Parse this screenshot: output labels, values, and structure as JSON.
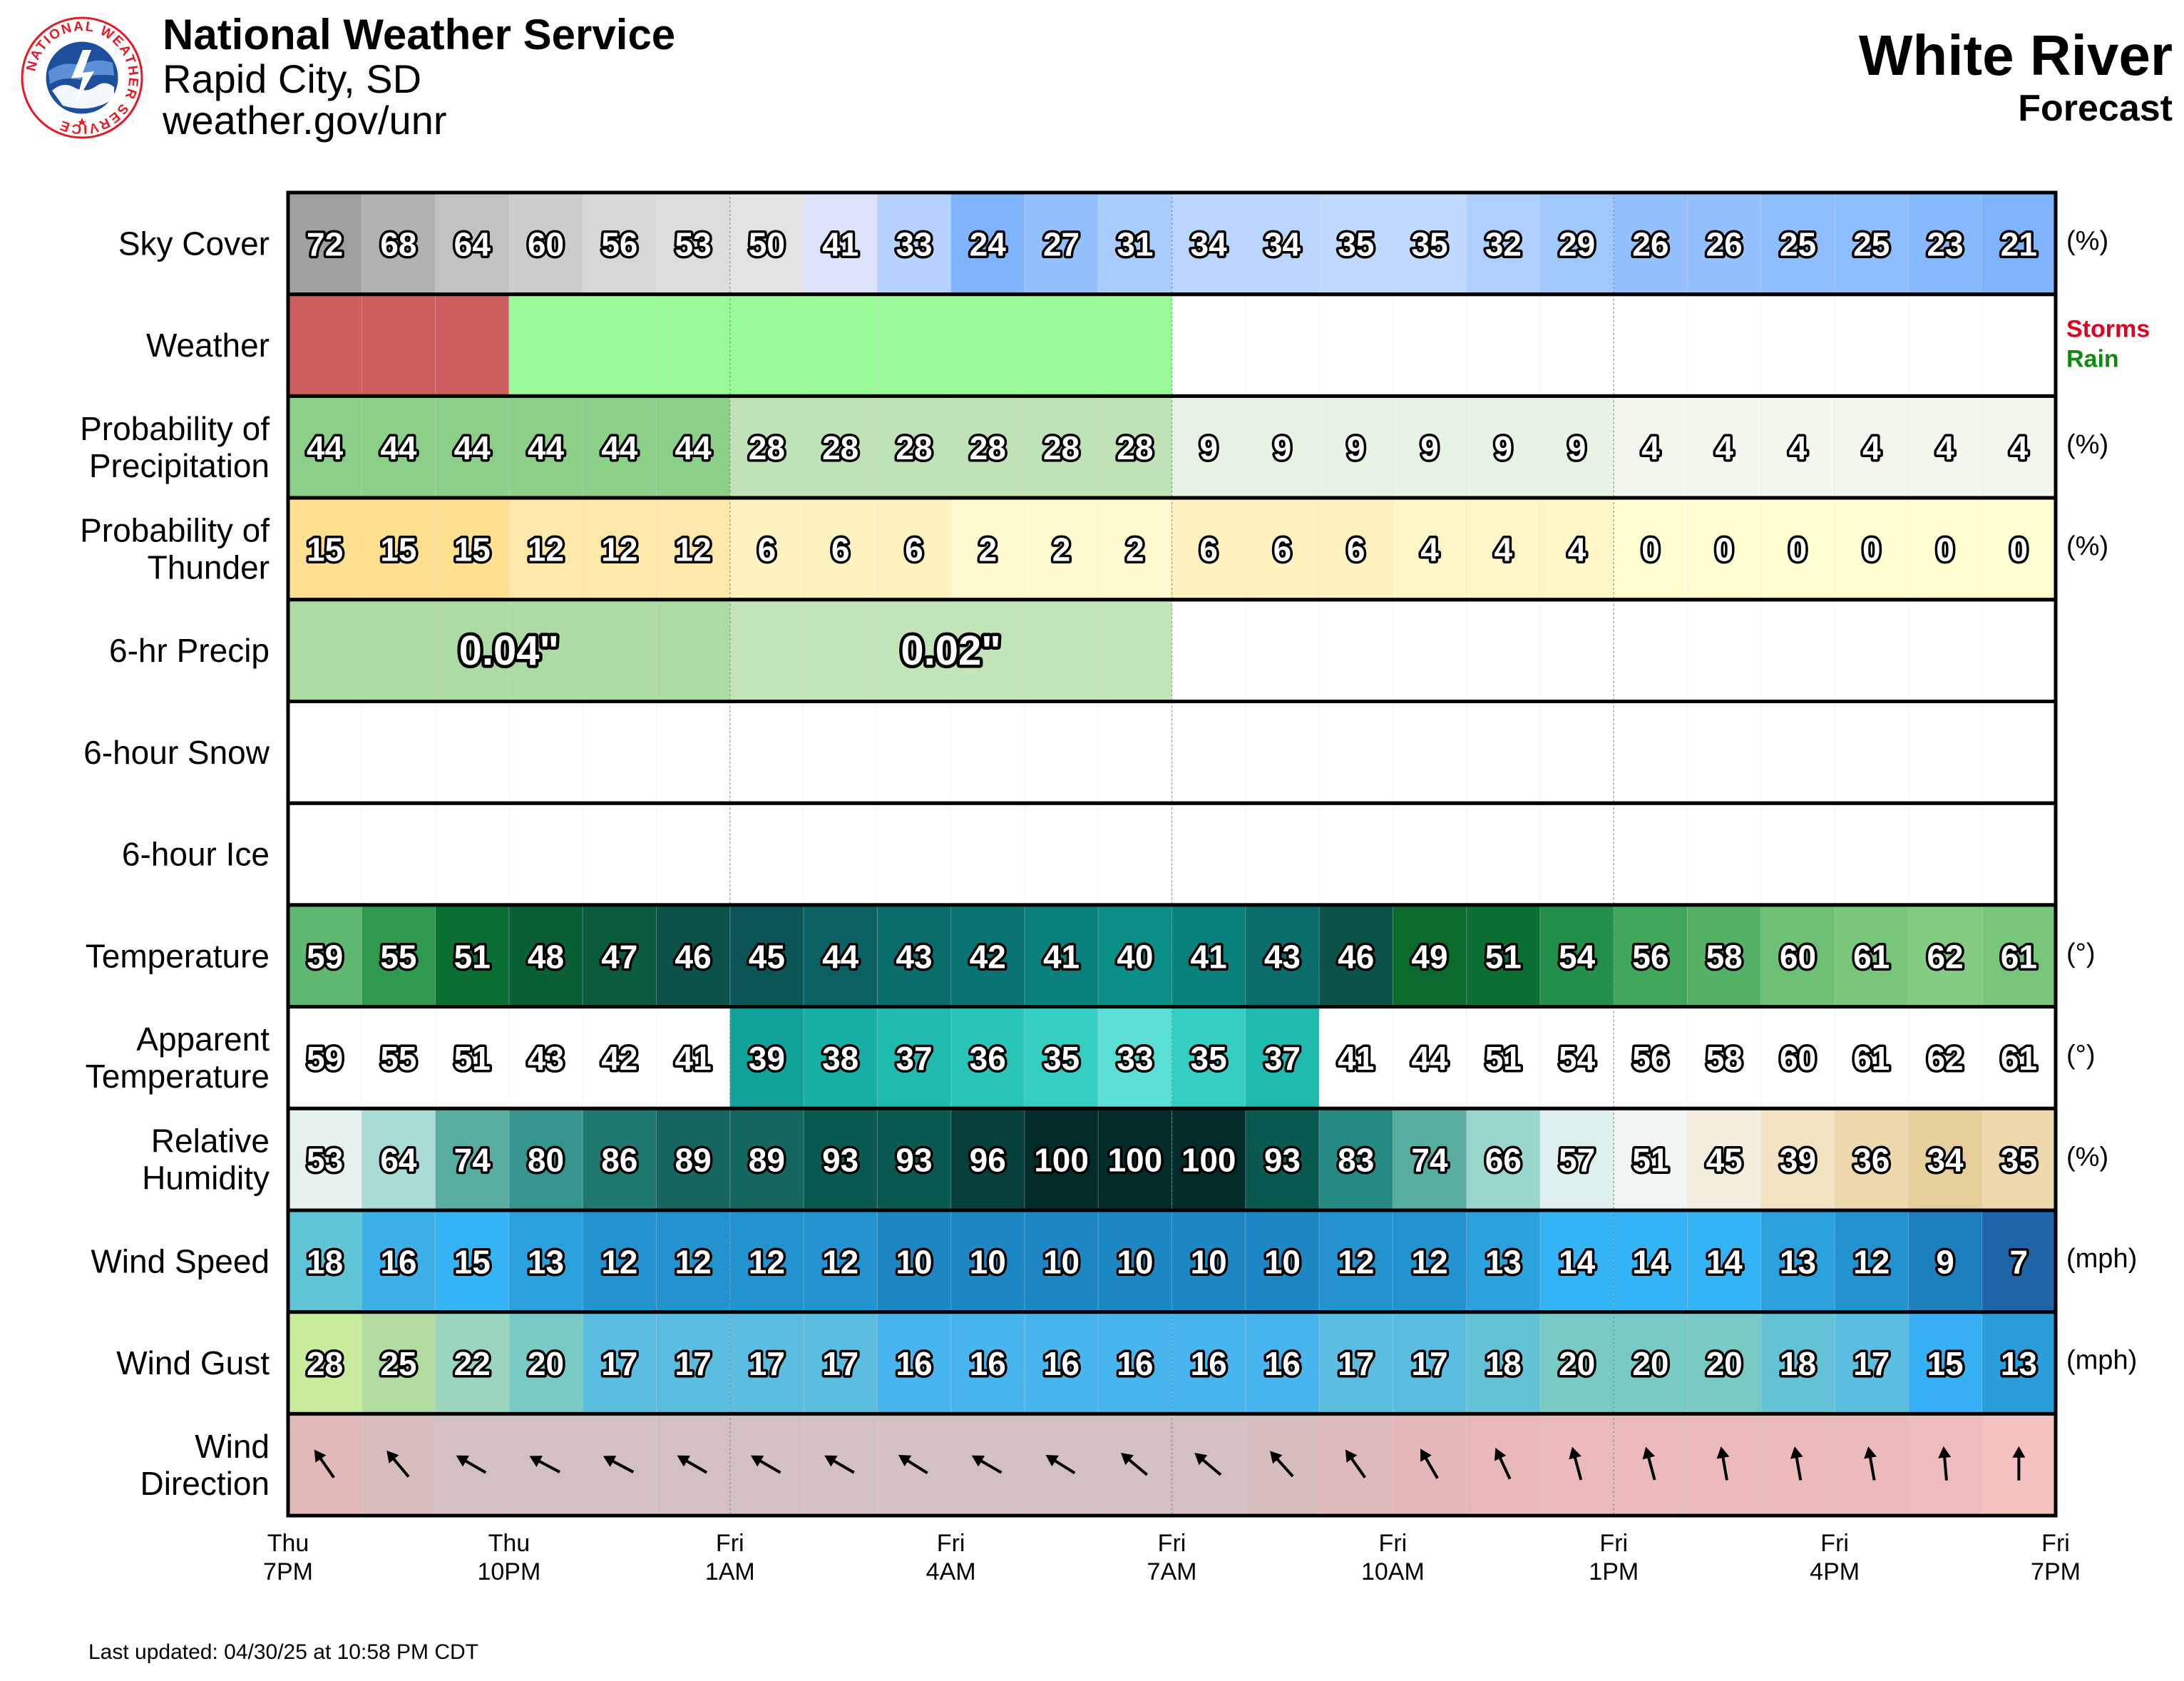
{
  "header": {
    "org": "National Weather Service",
    "office": "Rapid City, SD",
    "site": "weather.gov/unr",
    "location": "White River",
    "subtitle": "Forecast",
    "logo_text": "NATIONAL WEATHER SERVICE"
  },
  "footer": {
    "updated": "Last updated: 04/30/25 at 10:58 PM CDT"
  },
  "colors": {
    "storms": "#E3001B",
    "rain": "#0F8A0F",
    "storms_fill": "#CD5C5C",
    "rain_fill": "#98FB98",
    "frame": "#000000"
  },
  "chart_data": {
    "type": "table",
    "hours": [
      "Thu 7PM",
      "Thu 8PM",
      "Thu 9PM",
      "Thu 10PM",
      "Thu 11PM",
      "Fri 12AM",
      "Fri 1AM",
      "Fri 2AM",
      "Fri 3AM",
      "Fri 4AM",
      "Fri 5AM",
      "Fri 6AM",
      "Fri 7AM",
      "Fri 8AM",
      "Fri 9AM",
      "Fri 10AM",
      "Fri 11AM",
      "Fri 12PM",
      "Fri 1PM",
      "Fri 2PM",
      "Fri 3PM",
      "Fri 4PM",
      "Fri 5PM",
      "Fri 6PM"
    ],
    "x_ticks": [
      {
        "day": "Thu",
        "time": "7PM"
      },
      {
        "day": "Thu",
        "time": "10PM"
      },
      {
        "day": "Fri",
        "time": "1AM"
      },
      {
        "day": "Fri",
        "time": "4AM"
      },
      {
        "day": "Fri",
        "time": "7AM"
      },
      {
        "day": "Fri",
        "time": "10AM"
      },
      {
        "day": "Fri",
        "time": "1PM"
      },
      {
        "day": "Fri",
        "time": "4PM"
      },
      {
        "day": "Fri",
        "time": "7PM"
      }
    ],
    "rows": [
      {
        "key": "sky",
        "label": [
          "Sky Cover"
        ],
        "unit": "(%)",
        "kind": "number",
        "values": [
          72,
          68,
          64,
          60,
          56,
          53,
          50,
          41,
          33,
          24,
          27,
          31,
          34,
          34,
          35,
          35,
          32,
          29,
          26,
          26,
          25,
          25,
          23,
          21
        ],
        "colors": [
          "#A0A0A0",
          "#B2B2B2",
          "#C2C2C2",
          "#CDCDCD",
          "#D7D7D7",
          "#DDDDDD",
          "#E3E3E3",
          "#DCE3FA",
          "#B5D3FE",
          "#7FB4FD",
          "#94C1FD",
          "#A8CDFE",
          "#BAD6FE",
          "#BAD6FE",
          "#C0DAFE",
          "#C0DAFE",
          "#AFD0FE",
          "#A1C8FD",
          "#94C1FD",
          "#94C1FD",
          "#8FBEFD",
          "#8FBEFD",
          "#86B9FD",
          "#7FB4FD"
        ]
      },
      {
        "key": "weather",
        "label": [
          "Weather"
        ],
        "kind": "weather",
        "segments": [
          {
            "type": "storms",
            "start": 0,
            "end": 3
          },
          {
            "type": "rain",
            "start": 3,
            "end": 12
          }
        ],
        "legend": [
          "Storms",
          "Rain"
        ]
      },
      {
        "key": "pop",
        "label": [
          "Probability of",
          "Precipitation"
        ],
        "unit": "(%)",
        "kind": "number",
        "values": [
          44,
          44,
          44,
          44,
          44,
          44,
          28,
          28,
          28,
          28,
          28,
          28,
          9,
          9,
          9,
          9,
          9,
          9,
          4,
          4,
          4,
          4,
          4,
          4
        ],
        "colors": [
          "#8BCF89",
          "#8BCF89",
          "#8BCF89",
          "#8BCF89",
          "#8BCF89",
          "#8BCF89",
          "#BFE3B7",
          "#BFE3B7",
          "#BFE3B7",
          "#BFE3B7",
          "#BFE3B7",
          "#BFE3B7",
          "#E8F4E3",
          "#E8F4E3",
          "#E8F4E3",
          "#E8F4E3",
          "#E8F4E3",
          "#E8F4E3",
          "#F2F8EE",
          "#F2F8EE",
          "#F2F8EE",
          "#F2F8EE",
          "#F2F8EE",
          "#F2F8EE"
        ]
      },
      {
        "key": "thunder",
        "label": [
          "Probability of",
          "Thunder"
        ],
        "unit": "(%)",
        "kind": "number",
        "values": [
          15,
          15,
          15,
          12,
          12,
          12,
          6,
          6,
          6,
          2,
          2,
          2,
          6,
          6,
          6,
          4,
          4,
          4,
          0,
          0,
          0,
          0,
          0,
          0
        ],
        "colors": [
          "#FFE090",
          "#FFE090",
          "#FFE090",
          "#FFE8A8",
          "#FFE8A8",
          "#FFE8A8",
          "#FFF2BE",
          "#FFF2BE",
          "#FFF2BE",
          "#FFFAD0",
          "#FFFAD0",
          "#FFFAD0",
          "#FFF2BE",
          "#FFF2BE",
          "#FFF2BE",
          "#FFF6C8",
          "#FFF6C8",
          "#FFF6C8",
          "#FFFFD2",
          "#FFFFD2",
          "#FFFFD2",
          "#FFFFD2",
          "#FFFFD2",
          "#FFFFD2"
        ]
      },
      {
        "key": "qpf",
        "label": [
          "6-hr Precip"
        ],
        "kind": "span",
        "segments": [
          {
            "start": 0,
            "end": 6,
            "text": "0.04\"",
            "color": "#ACDCA3"
          },
          {
            "start": 6,
            "end": 12,
            "text": "0.02\"",
            "color": "#C2E5B9"
          }
        ]
      },
      {
        "key": "snow",
        "label": [
          "6-hour Snow"
        ],
        "kind": "empty"
      },
      {
        "key": "ice",
        "label": [
          "6-hour Ice"
        ],
        "kind": "empty"
      },
      {
        "key": "temp",
        "label": [
          "Temperature"
        ],
        "unit": "(°)",
        "kind": "number",
        "values": [
          59,
          55,
          51,
          48,
          47,
          46,
          45,
          44,
          43,
          42,
          41,
          40,
          41,
          43,
          46,
          49,
          51,
          54,
          56,
          58,
          60,
          61,
          62,
          61
        ],
        "colors": [
          "#5FB870",
          "#2E9A4E",
          "#0B6E32",
          "#0A6034",
          "#0A5C3D",
          "#0B5248",
          "#0C5556",
          "#0A6062",
          "#0B6D6B",
          "#0A7472",
          "#0A807C",
          "#0A8E88",
          "#0A807C",
          "#0B6D6B",
          "#0B5248",
          "#0A6A2E",
          "#0B6E32",
          "#228F4A",
          "#3FA65A",
          "#54B266",
          "#6CBF73",
          "#77C67A",
          "#84CC82",
          "#77C67A"
        ]
      },
      {
        "key": "apparent",
        "label": [
          "Apparent",
          "Temperature"
        ],
        "unit": "(°)",
        "kind": "number",
        "values": [
          59,
          55,
          51,
          43,
          42,
          41,
          39,
          38,
          37,
          36,
          35,
          33,
          35,
          37,
          41,
          44,
          51,
          54,
          56,
          58,
          60,
          61,
          62,
          61
        ],
        "colors": [
          "#FFFFFF",
          "#FFFFFF",
          "#FFFFFF",
          "#FFFFFF",
          "#FFFFFF",
          "#FFFFFF",
          "#10A39B",
          "#17B0A6",
          "#20BBB0",
          "#2AC5B9",
          "#35CFC2",
          "#5BDED5",
          "#35CFC2",
          "#20BBB0",
          "#FFFFFF",
          "#FFFFFF",
          "#FFFFFF",
          "#FFFFFF",
          "#FFFFFF",
          "#FFFFFF",
          "#FFFFFF",
          "#FFFFFF",
          "#FFFFFF",
          "#FFFFFF"
        ]
      },
      {
        "key": "rh",
        "label": [
          "Relative",
          "Humidity"
        ],
        "unit": "(%)",
        "kind": "number",
        "values": [
          53,
          64,
          74,
          80,
          86,
          89,
          89,
          93,
          93,
          96,
          100,
          100,
          100,
          93,
          83,
          74,
          66,
          57,
          51,
          45,
          39,
          36,
          34,
          35
        ],
        "colors": [
          "#E6F2F0",
          "#A8DCD5",
          "#56ADA0",
          "#36968D",
          "#1E7870",
          "#14665F",
          "#14665F",
          "#0A5A52",
          "#0A5A52",
          "#063F3B",
          "#012C29",
          "#012C29",
          "#012C29",
          "#0A5A52",
          "#248A82",
          "#56ADA0",
          "#9BD6CE",
          "#DDF0EE",
          "#F0F4F3",
          "#F4EEDF",
          "#F2E3C3",
          "#EDD9AC",
          "#E6CF9A",
          "#EDD9AC"
        ]
      },
      {
        "key": "wind",
        "label": [
          "Wind Speed"
        ],
        "unit": "(mph)",
        "kind": "number",
        "values": [
          18,
          16,
          15,
          13,
          12,
          12,
          12,
          12,
          10,
          10,
          10,
          10,
          10,
          10,
          12,
          12,
          13,
          14,
          14,
          14,
          13,
          12,
          9,
          7
        ],
        "colors": [
          "#5EC4D6",
          "#3DB0E8",
          "#34B3F5",
          "#2AA0DC",
          "#2293CF",
          "#2293CF",
          "#2293CF",
          "#2293CF",
          "#1D87C3",
          "#1D87C3",
          "#1D87C3",
          "#1D87C3",
          "#1D87C3",
          "#1D87C3",
          "#2293CF",
          "#2293CF",
          "#2AA0DC",
          "#34B3F5",
          "#34B3F5",
          "#34B3F5",
          "#2AA0DC",
          "#2293CF",
          "#1D80BD",
          "#1E64A8"
        ]
      },
      {
        "key": "gust",
        "label": [
          "Wind Gust"
        ],
        "unit": "(mph)",
        "kind": "number",
        "values": [
          28,
          25,
          22,
          20,
          17,
          17,
          17,
          17,
          16,
          16,
          16,
          16,
          16,
          16,
          17,
          17,
          18,
          20,
          20,
          20,
          18,
          17,
          15,
          13
        ],
        "colors": [
          "#C8EC9C",
          "#B2DCA0",
          "#9AD6BE",
          "#78CAC4",
          "#5BBEE0",
          "#5BBEE0",
          "#5BBEE0",
          "#5BBEE0",
          "#48B5EE",
          "#48B5EE",
          "#48B5EE",
          "#48B5EE",
          "#48B5EE",
          "#48B5EE",
          "#5BBEE0",
          "#5BBEE0",
          "#64C2D6",
          "#78CAC4",
          "#78CAC4",
          "#78CAC4",
          "#64C2D6",
          "#5BBEE0",
          "#38B0F5",
          "#2A9EDD"
        ]
      },
      {
        "key": "dir",
        "label": [
          "Wind",
          "Direction"
        ],
        "kind": "arrow",
        "degrees": [
          325,
          320,
          300,
          298,
          298,
          300,
          300,
          300,
          302,
          300,
          302,
          310,
          310,
          318,
          325,
          330,
          335,
          345,
          345,
          350,
          350,
          350,
          355,
          0
        ],
        "colors": [
          "#E2B8B8",
          "#D8BDBD",
          "#D3C0C0",
          "#D3C0C0",
          "#D3C0C0",
          "#D3C0C0",
          "#D3C0C0",
          "#D3C0C0",
          "#D3C0C0",
          "#D3C0C0",
          "#D3C0C0",
          "#D3C0C0",
          "#D3C0C0",
          "#D6BEBE",
          "#DEBABA",
          "#E4B8B8",
          "#E8B8B8",
          "#EBBABA",
          "#EBBABA",
          "#EBBABA",
          "#EBBABA",
          "#EBBABA",
          "#EEBCBC",
          "#F5C1C1"
        ]
      }
    ]
  }
}
